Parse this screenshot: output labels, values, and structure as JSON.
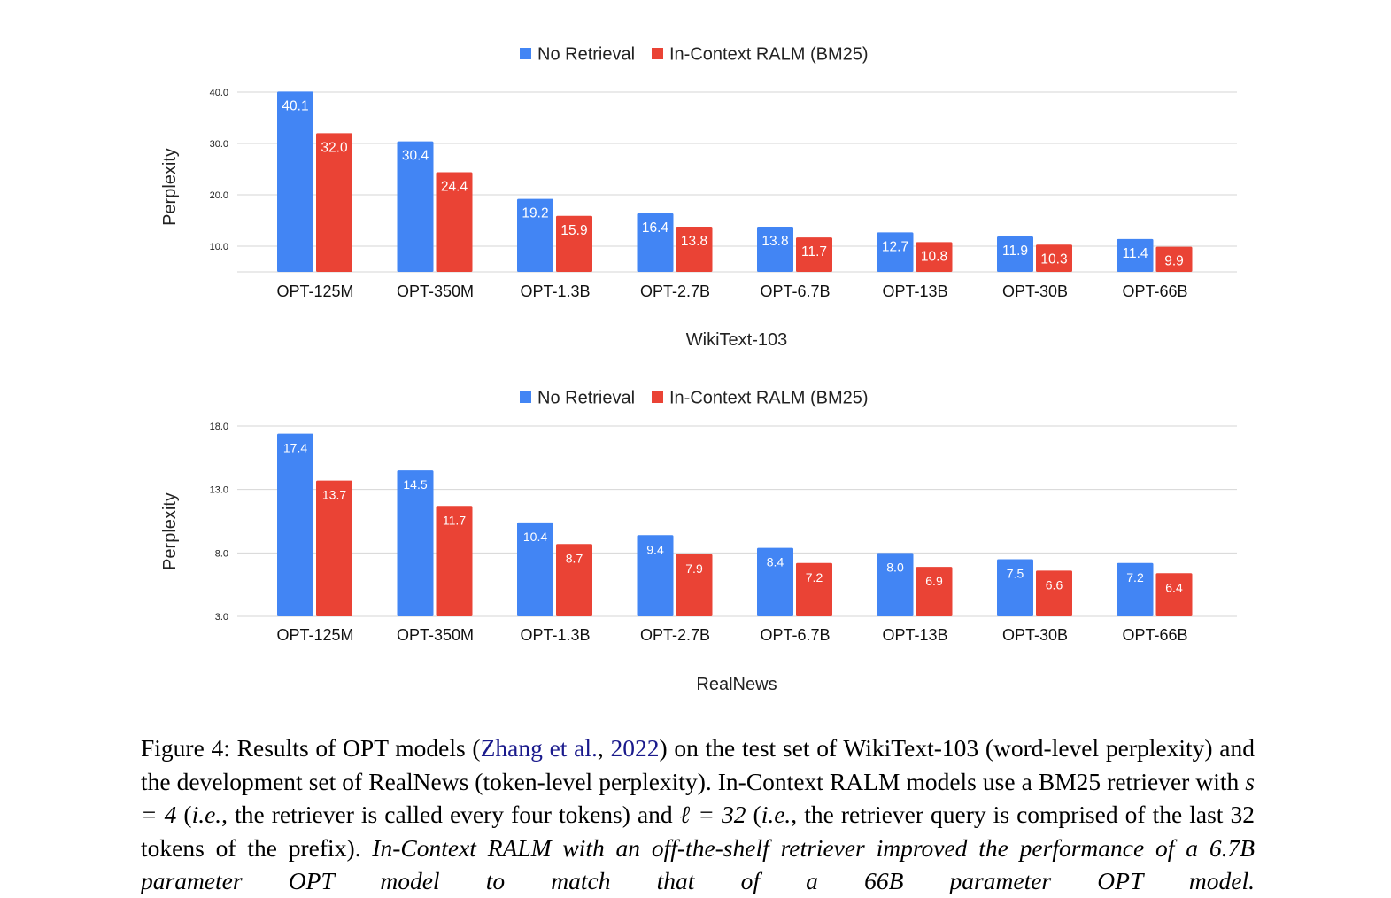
{
  "charts_meta": {
    "legend_labels": [
      "No Retrieval",
      "In-Context RALM (BM25)"
    ],
    "colors": {
      "no_retrieval": "#4285f4",
      "ralm": "#ea4335"
    }
  },
  "chart_data": [
    {
      "type": "bar",
      "title": "",
      "xlabel": "WikiText-103",
      "ylabel": "Perplexity",
      "categories": [
        "OPT-125M",
        "OPT-350M",
        "OPT-1.3B",
        "OPT-2.7B",
        "OPT-6.7B",
        "OPT-13B",
        "OPT-30B",
        "OPT-66B"
      ],
      "series": [
        {
          "name": "No Retrieval",
          "values": [
            40.1,
            30.4,
            19.2,
            16.4,
            13.8,
            12.7,
            11.9,
            11.4
          ]
        },
        {
          "name": "In-Context RALM (BM25)",
          "values": [
            32.0,
            24.4,
            15.9,
            13.8,
            11.7,
            10.8,
            10.3,
            9.9
          ]
        }
      ],
      "ylim": [
        5.0,
        40.0
      ],
      "yticks": [
        "10.0",
        "20.0",
        "30.0",
        "40.0"
      ],
      "legend": "top-center",
      "grid": true
    },
    {
      "type": "bar",
      "title": "",
      "xlabel": "RealNews",
      "ylabel": "Perplexity",
      "categories": [
        "OPT-125M",
        "OPT-350M",
        "OPT-1.3B",
        "OPT-2.7B",
        "OPT-6.7B",
        "OPT-13B",
        "OPT-30B",
        "OPT-66B"
      ],
      "series": [
        {
          "name": "No Retrieval",
          "values": [
            17.4,
            14.5,
            10.4,
            9.4,
            8.4,
            8.0,
            7.5,
            7.2
          ]
        },
        {
          "name": "In-Context RALM (BM25)",
          "values": [
            13.7,
            11.7,
            8.7,
            7.9,
            7.2,
            6.9,
            6.6,
            6.4
          ]
        }
      ],
      "ylim": [
        3.0,
        18.0
      ],
      "yticks": [
        "3.0",
        "8.0",
        "13.0",
        "18.0"
      ],
      "legend": "top-center",
      "grid": true
    }
  ],
  "caption": {
    "part1": "Figure 4: Results of OPT models (",
    "cite_authors": "Zhang et al.",
    "cite_sep": ", ",
    "cite_year": "2022",
    "part2": ") on the test set of WikiText-103 (word-level perplexity) and the development set of RealNews (token-level perplexity). In-Context RALM models use a BM25 retriever with ",
    "s_eq": "s = 4",
    "part3": " (",
    "ie1": "i.e.",
    "part4": ", the retriever is called every four tokens) and ",
    "l_eq": "ℓ = 32",
    "part5": " (",
    "ie2": "i.e.",
    "part6": ", the retriever query is comprised of the last 32 tokens of the prefix). ",
    "italic_tail": "In-Context RALM with an off-the-shelf retriever improved the performance of a 6.7B parameter OPT model to match that of a 66B parameter OPT model."
  }
}
